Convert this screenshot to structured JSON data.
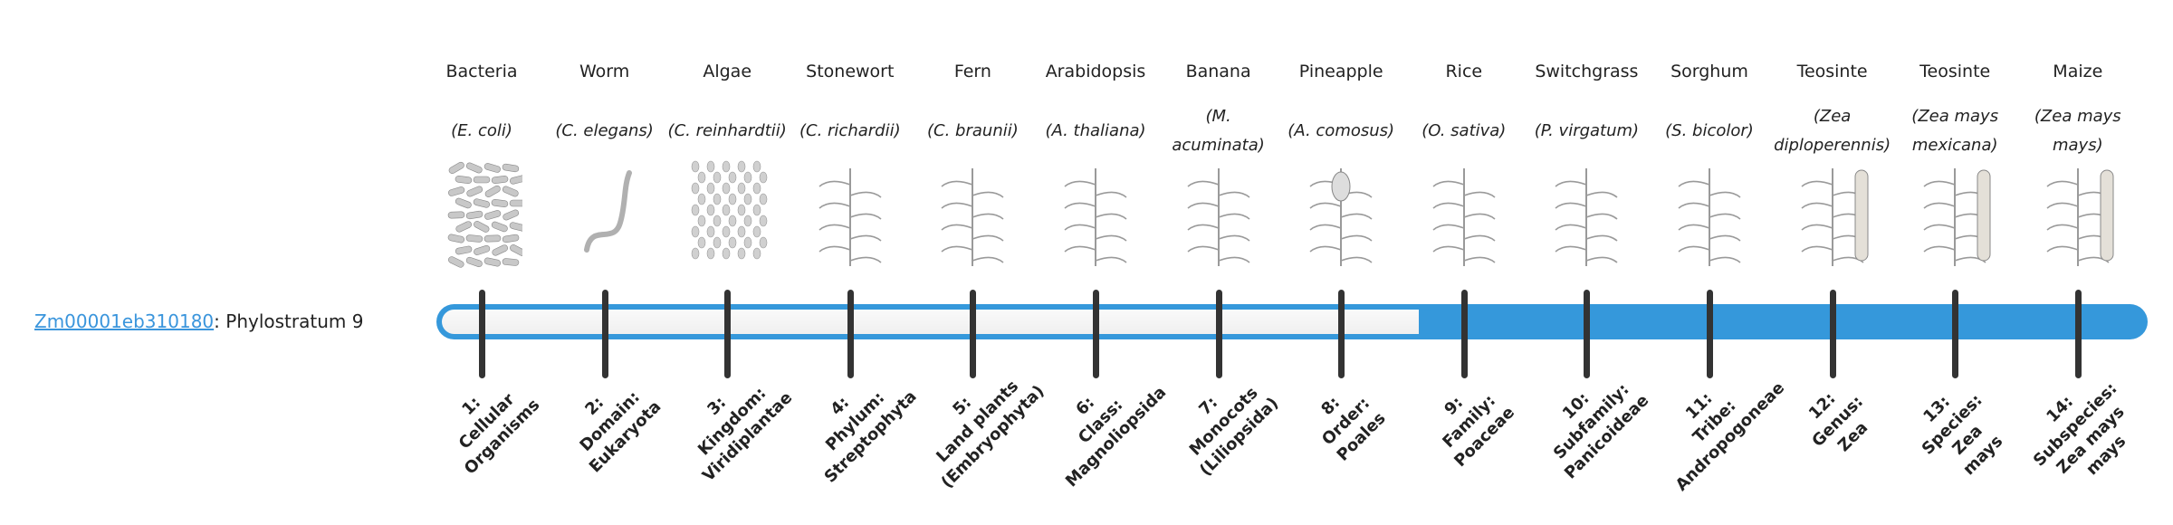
{
  "gene": {
    "id": "Zm00001eb310180",
    "separator": ": ",
    "text": "Phylostratum 9",
    "phylostratum": 9,
    "total_strata": 14
  },
  "colors": {
    "accent": "#3598db",
    "tick": "#333333",
    "link": "#3a95dc"
  },
  "organisms": [
    {
      "common": "Bacteria",
      "scientific": "(E. coli)",
      "icon": "bacteria-image"
    },
    {
      "common": "Worm",
      "scientific": "(C. elegans)",
      "icon": "worm-image"
    },
    {
      "common": "Algae",
      "scientific": "(C. reinhardtii)",
      "icon": "algae-image"
    },
    {
      "common": "Stonewort",
      "scientific": "(C. richardii)",
      "icon": "stonewort-image"
    },
    {
      "common": "Fern",
      "scientific": "(C. braunii)",
      "icon": "fern-image"
    },
    {
      "common": "Arabidopsis",
      "scientific": "(A. thaliana)",
      "icon": "arabidopsis-image"
    },
    {
      "common": "Banana",
      "scientific": "(M. acuminata)",
      "icon": "banana-image"
    },
    {
      "common": "Pineapple",
      "scientific": "(A. comosus)",
      "icon": "pineapple-image"
    },
    {
      "common": "Rice",
      "scientific": "(O. sativa)",
      "icon": "rice-image"
    },
    {
      "common": "Switchgrass",
      "scientific": "(P. virgatum)",
      "icon": "switchgrass-image"
    },
    {
      "common": "Sorghum",
      "scientific": "(S. bicolor)",
      "icon": "sorghum-image"
    },
    {
      "common": "Teosinte",
      "scientific": "(Zea diploperennis)",
      "icon": "teosinte-image"
    },
    {
      "common": "Teosinte",
      "scientific": "(Zea mays mexicana)",
      "icon": "teosinte-image"
    },
    {
      "common": "Maize",
      "scientific": "(Zea mays mays)",
      "icon": "maize-image"
    }
  ],
  "strata": [
    [
      "1:",
      "Cellular",
      "Organisms"
    ],
    [
      "2:",
      "Domain:",
      "Eukaryota"
    ],
    [
      "3:",
      "Kingdom:",
      "Viridiplantae"
    ],
    [
      "4:",
      "Phylum:",
      "Streptophyta"
    ],
    [
      "5:",
      "Land plants",
      "(Embryophyta)"
    ],
    [
      "6:",
      "Class:",
      "Magnoliopsida"
    ],
    [
      "7:",
      "Monocots",
      "(Liliopsida)"
    ],
    [
      "8:",
      "Order:",
      "Poales"
    ],
    [
      "9:",
      "Family:",
      "Poaceae"
    ],
    [
      "10:",
      "Subfamily:",
      "Panicoideae"
    ],
    [
      "11:",
      "Tribe:",
      "Andropogoneae"
    ],
    [
      "12:",
      "Genus:",
      "Zea"
    ],
    [
      "13:",
      "Species:",
      "Zea",
      "mays"
    ],
    [
      "14:",
      "Subspecies:",
      "Zea mays",
      "mays"
    ]
  ]
}
